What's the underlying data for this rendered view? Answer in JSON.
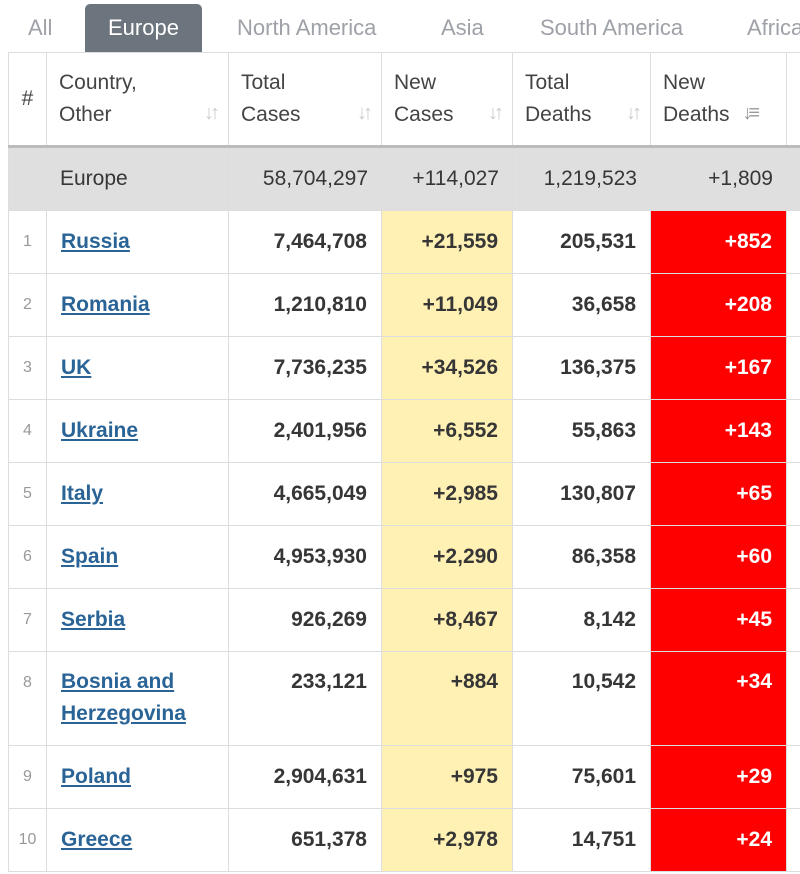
{
  "tabs": [
    "All",
    "Europe",
    "North America",
    "Asia",
    "South America",
    "Africa"
  ],
  "active_tab": "Europe",
  "headers": {
    "num": "#",
    "country_l1": "Country,",
    "country_l2": "Other",
    "total_cases_l1": "Total",
    "total_cases_l2": "Cases",
    "new_cases_l1": "New",
    "new_cases_l2": "Cases",
    "total_deaths_l1": "Total",
    "total_deaths_l2": "Deaths",
    "new_deaths_l1": "New",
    "new_deaths_l2": "Deaths"
  },
  "total": {
    "name": "Europe",
    "total_cases": "58,704,297",
    "new_cases": "+114,027",
    "total_deaths": "1,219,523",
    "new_deaths": "+1,809"
  },
  "rows": [
    {
      "num": "1",
      "country": "Russia",
      "total_cases": "7,464,708",
      "new_cases": "+21,559",
      "total_deaths": "205,531",
      "new_deaths": "+852"
    },
    {
      "num": "2",
      "country": "Romania",
      "total_cases": "1,210,810",
      "new_cases": "+11,049",
      "total_deaths": "36,658",
      "new_deaths": "+208"
    },
    {
      "num": "3",
      "country": "UK",
      "total_cases": "7,736,235",
      "new_cases": "+34,526",
      "total_deaths": "136,375",
      "new_deaths": "+167"
    },
    {
      "num": "4",
      "country": "Ukraine",
      "total_cases": "2,401,956",
      "new_cases": "+6,552",
      "total_deaths": "55,863",
      "new_deaths": "+143"
    },
    {
      "num": "5",
      "country": "Italy",
      "total_cases": "4,665,049",
      "new_cases": "+2,985",
      "total_deaths": "130,807",
      "new_deaths": "+65"
    },
    {
      "num": "6",
      "country": "Spain",
      "total_cases": "4,953,930",
      "new_cases": "+2,290",
      "total_deaths": "86,358",
      "new_deaths": "+60"
    },
    {
      "num": "7",
      "country": "Serbia",
      "total_cases": "926,269",
      "new_cases": "+8,467",
      "total_deaths": "8,142",
      "new_deaths": "+45"
    },
    {
      "num": "8",
      "country": "Bosnia and Herzegovina",
      "total_cases": "233,121",
      "new_cases": "+884",
      "total_deaths": "10,542",
      "new_deaths": "+34"
    },
    {
      "num": "9",
      "country": "Poland",
      "total_cases": "2,904,631",
      "new_cases": "+975",
      "total_deaths": "75,601",
      "new_deaths": "+29"
    },
    {
      "num": "10",
      "country": "Greece",
      "total_cases": "651,378",
      "new_cases": "+2,978",
      "total_deaths": "14,751",
      "new_deaths": "+24"
    }
  ]
}
